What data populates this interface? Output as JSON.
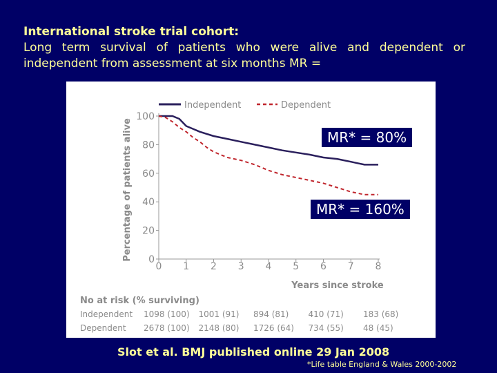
{
  "title": {
    "heading": "International stroke trial cohort:",
    "line1": "Long term survival of patients who were alive and dependent or",
    "line2": "independent from assessment at six months MR ="
  },
  "annotations": {
    "mr_independent": "MR* = 80%",
    "mr_dependent": "MR* = 160%"
  },
  "citation": "Slot et al. BMJ published online 29 Jan 2008",
  "footnote": "*Life table England  & Wales 2000-2002",
  "colors": {
    "background": "#000066",
    "title_text": "#ffff99",
    "independent": "#2a1f5c",
    "dependent": "#c0262d",
    "axis_text": "#8a8a8a"
  },
  "chart_data": {
    "type": "line",
    "xlabel": "Years since stroke",
    "ylabel": "Percentage of patients alive",
    "xlim": [
      0,
      8
    ],
    "ylim": [
      0,
      100
    ],
    "xticks": [
      "0",
      "1",
      "2",
      "3",
      "4",
      "5",
      "6",
      "7",
      "8"
    ],
    "yticks": [
      "0",
      "20",
      "40",
      "60",
      "80",
      "100"
    ],
    "legend": [
      {
        "name": "Independent",
        "style": "solid"
      },
      {
        "name": "Dependent",
        "style": "dashed"
      }
    ],
    "series": [
      {
        "name": "Independent",
        "x": [
          0,
          0.5,
          0.75,
          1,
          1.25,
          1.5,
          2,
          2.5,
          3,
          3.5,
          4,
          4.5,
          5,
          5.5,
          6,
          6.5,
          7,
          7.25,
          7.5,
          8
        ],
        "y": [
          100,
          100,
          98,
          93,
          91,
          89,
          86,
          84,
          82,
          80,
          78,
          76,
          74.5,
          73,
          71,
          70,
          68,
          67,
          66,
          66
        ]
      },
      {
        "name": "Dependent",
        "x": [
          0,
          0.25,
          0.5,
          0.75,
          1,
          1.25,
          1.5,
          1.75,
          2,
          2.25,
          2.5,
          3,
          3.5,
          4,
          4.5,
          5,
          5.5,
          6,
          6.5,
          7,
          7.5,
          8
        ],
        "y": [
          100,
          99,
          96,
          92,
          89,
          85,
          82,
          78,
          75,
          73,
          71,
          69,
          66,
          62,
          59,
          57,
          55,
          53,
          50,
          47,
          45,
          45
        ]
      }
    ],
    "at_risk": {
      "title": "No at risk (% surviving)",
      "rows": [
        {
          "label": "Independent",
          "values": [
            "1098 (100)",
            "1001 (91)",
            "894 (81)",
            "410 (71)",
            "183 (68)"
          ]
        },
        {
          "label": "Dependent",
          "values": [
            "2678 (100)",
            "2148 (80)",
            "1726 (64)",
            "734 (55)",
            "48 (45)"
          ]
        }
      ]
    }
  }
}
